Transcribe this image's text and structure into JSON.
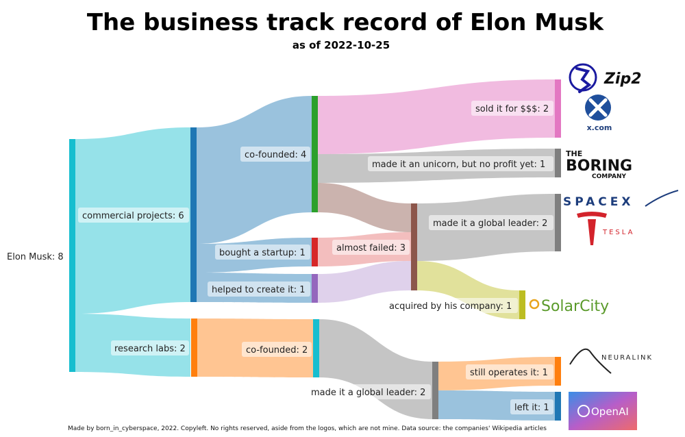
{
  "header": {
    "title": "The business track record of Elon Musk",
    "subtitle": "as of 2022-10-25"
  },
  "nodes": {
    "root": "Elon Musk: 8",
    "commercial": "commercial projects: 6",
    "research": "research labs: 2",
    "cofounded_com": "co-founded: 4",
    "bought": "bought a startup: 1",
    "helped": "helped to create it: 1",
    "cofounded_res": "co-founded: 2",
    "almost_failed": "almost failed: 3",
    "sold": "sold it for $$$: 2",
    "unicorn": "made it an unicorn, but no profit yet: 1",
    "leader_com": "made it a global leader: 2",
    "acquired": "acquired by his company: 1",
    "leader_res": "made it a global leader: 2",
    "still": "still operates it: 1",
    "left": "left it: 1"
  },
  "logos": {
    "zip2": "Zip2",
    "xcom": "x.com",
    "boring_the": "THE",
    "boring_main": "BORING",
    "boring_company": "COMPANY",
    "spacex": "SPACEX",
    "tesla": "TESLA",
    "solarcity": "SolarCity",
    "neuralink": "NEURALINK",
    "openai": "OpenAI"
  },
  "footer": "Made by born_in_cyberspace, 2022. Copyleft. No rights reserved, aside from the logos, which are not mine. Data source: the companies' Wikipedia articles",
  "colors": {
    "root": "#17becf",
    "commercial": "#1f77b4",
    "research": "#ff7f0e",
    "cofounded_com": "#2ca02c",
    "bought": "#d62728",
    "helped": "#9467bd",
    "almost_failed": "#8c564b",
    "sold": "#e377c2",
    "unicorn": "#7f7f7f",
    "leader_com": "#7f7f7f",
    "acquired": "#bcbd22",
    "cofounded_res": "#17becf",
    "leader_res": "#7f7f7f",
    "still": "#ff7f0e",
    "left": "#1f77b4"
  },
  "flows": [
    {
      "from": "root",
      "to": "commercial",
      "value": 6
    },
    {
      "from": "root",
      "to": "research",
      "value": 2
    },
    {
      "from": "commercial",
      "to": "cofounded_com",
      "value": 4
    },
    {
      "from": "commercial",
      "to": "bought",
      "value": 1
    },
    {
      "from": "commercial",
      "to": "helped",
      "value": 1
    },
    {
      "from": "research",
      "to": "cofounded_res",
      "value": 2
    },
    {
      "from": "cofounded_com",
      "to": "sold",
      "value": 2
    },
    {
      "from": "cofounded_com",
      "to": "unicorn",
      "value": 1
    },
    {
      "from": "cofounded_com",
      "to": "almost_failed",
      "value": 1
    },
    {
      "from": "bought",
      "to": "almost_failed",
      "value": 1
    },
    {
      "from": "helped",
      "to": "almost_failed",
      "value": 1
    },
    {
      "from": "almost_failed",
      "to": "leader_com",
      "value": 2
    },
    {
      "from": "almost_failed",
      "to": "acquired",
      "value": 1
    },
    {
      "from": "cofounded_res",
      "to": "leader_res",
      "value": 2
    },
    {
      "from": "leader_res",
      "to": "still",
      "value": 1
    },
    {
      "from": "leader_res",
      "to": "left",
      "value": 1
    }
  ]
}
